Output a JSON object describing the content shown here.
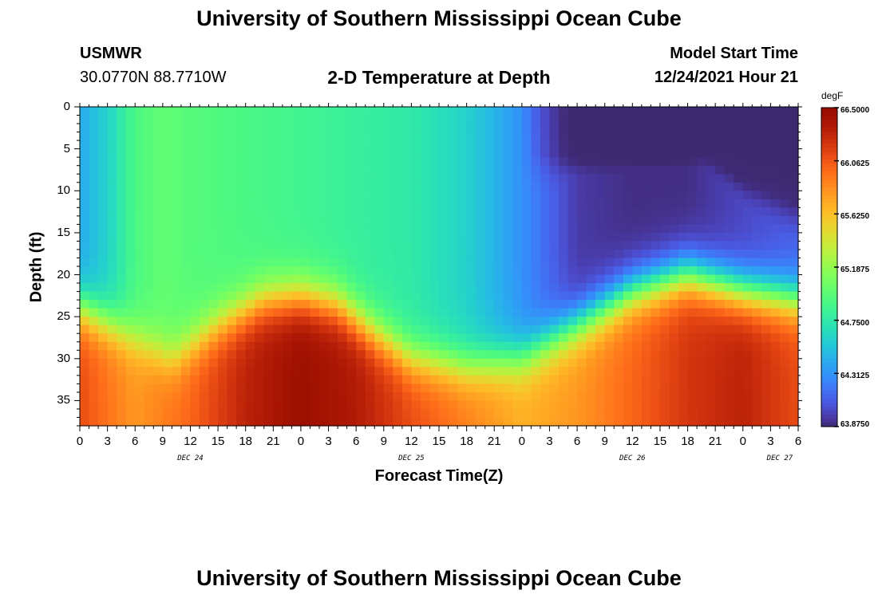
{
  "title": "University of Southern Mississippi Ocean Cube",
  "footer_title": "University of Southern Mississippi Ocean Cube",
  "station": {
    "name": "USMWR",
    "coords": "30.0770N  88.7710W"
  },
  "model": {
    "label": "Model Start Time",
    "time": "12/24/2021 Hour 21"
  },
  "chart_data": {
    "type": "heatmap",
    "title": "2-D Temperature at Depth",
    "xlabel": "Forecast Time(Z)",
    "ylabel": "Depth (ft)",
    "x_tick_labels": [
      "0",
      "3",
      "6",
      "9",
      "12",
      "15",
      "18",
      "21",
      "0",
      "3",
      "6",
      "9",
      "12",
      "15",
      "18",
      "21",
      "0",
      "3",
      "6",
      "9",
      "12",
      "15",
      "18",
      "21",
      "0",
      "3",
      "6"
    ],
    "x_hours": [
      0,
      3,
      6,
      9,
      12,
      15,
      18,
      21,
      24,
      27,
      30,
      33,
      36,
      39,
      42,
      45,
      48,
      51,
      54,
      57,
      60,
      63,
      66,
      69,
      72,
      75,
      78
    ],
    "day_labels": [
      {
        "label": "DEC 24",
        "hour": 12
      },
      {
        "label": "DEC 25",
        "hour": 36
      },
      {
        "label": "DEC 26",
        "hour": 60
      },
      {
        "label": "DEC 27",
        "hour": 76
      }
    ],
    "y_ticks": [
      0,
      5,
      10,
      15,
      20,
      25,
      30,
      35
    ],
    "xlim": [
      0,
      78
    ],
    "ylim": [
      0,
      38
    ],
    "y_inverted": true,
    "colorbar": {
      "unit": "degF",
      "min": 63.875,
      "max": 66.5,
      "ticks": [
        "66.5000",
        "66.0625",
        "65.6250",
        "65.1875",
        "64.7500",
        "64.3125",
        "63.8750"
      ],
      "colormap": "turbo"
    },
    "mixed_layer_depth_ft": {
      "hours": [
        0,
        5,
        10,
        15,
        20,
        24,
        28,
        32,
        36,
        42,
        48,
        54,
        60,
        66,
        72,
        78
      ],
      "depths": [
        24,
        27,
        30,
        26,
        23,
        22.5,
        23.5,
        27,
        30,
        31,
        30,
        26,
        22,
        20,
        22,
        23
      ]
    },
    "surface_temp_degF": {
      "hours": [
        0,
        3,
        6,
        9,
        12,
        18,
        24,
        30,
        36,
        42,
        48,
        54,
        60,
        66,
        72,
        78
      ],
      "values": [
        64.4,
        64.6,
        64.9,
        65.0,
        64.95,
        64.9,
        64.85,
        64.8,
        64.75,
        64.6,
        64.3,
        63.95,
        63.9,
        63.9,
        64.0,
        64.1
      ]
    },
    "bottom_temp_degF": {
      "hours": [
        0,
        6,
        12,
        18,
        24,
        30,
        36,
        42,
        48,
        54,
        60,
        66,
        72,
        78
      ],
      "values": [
        66.1,
        65.8,
        66.0,
        66.3,
        66.45,
        66.35,
        66.1,
        65.9,
        65.7,
        65.8,
        66.0,
        66.2,
        66.3,
        66.1
      ]
    },
    "cold_pool": {
      "hour_start": 48,
      "hour_end": 78,
      "depth_bottom_ft": [
        8,
        9,
        10,
        10,
        10,
        9,
        12,
        15
      ],
      "hours": [
        48,
        52,
        56,
        60,
        64,
        68,
        72,
        78
      ],
      "core_temp_degF": 63.875
    }
  }
}
